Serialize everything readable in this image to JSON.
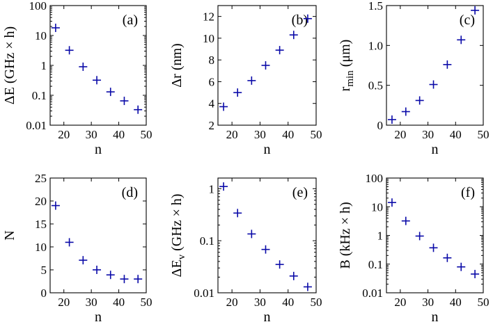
{
  "marker_color": "#0a0aa8",
  "chart_data": [
    {
      "id": "a",
      "type": "scatter",
      "panel_label": "(a)",
      "xlabel": "n",
      "ylabel": "ΔE (GHz × h)",
      "ylabel_sub": "",
      "yscale": "log",
      "xlim": [
        15,
        50
      ],
      "ylim": [
        0.01,
        100
      ],
      "xticks": [
        20,
        30,
        40,
        50
      ],
      "xtick_labels": [
        "20",
        "30",
        "40",
        "50"
      ],
      "yticks": [
        0.01,
        0.1,
        1,
        10,
        100
      ],
      "ytick_labels": [
        "0.01",
        "0.1",
        "1",
        "10",
        "100"
      ],
      "x": [
        17,
        22,
        27,
        32,
        37,
        42,
        47
      ],
      "y": [
        18,
        3.2,
        0.9,
        0.32,
        0.13,
        0.065,
        0.033
      ]
    },
    {
      "id": "b",
      "type": "scatter",
      "panel_label": "(b)",
      "xlabel": "n",
      "ylabel": "Δr (nm)",
      "ylabel_sub": "",
      "yscale": "linear",
      "xlim": [
        15,
        50
      ],
      "ylim": [
        2,
        13
      ],
      "xticks": [
        20,
        30,
        40,
        50
      ],
      "xtick_labels": [
        "20",
        "30",
        "40",
        "50"
      ],
      "yticks": [
        2,
        4,
        6,
        8,
        10,
        12
      ],
      "ytick_labels": [
        "2",
        "4",
        "6",
        "8",
        "10",
        "12"
      ],
      "x": [
        17,
        22,
        27,
        32,
        37,
        42,
        47
      ],
      "y": [
        3.7,
        5.0,
        6.1,
        7.5,
        8.9,
        10.3,
        11.8
      ]
    },
    {
      "id": "c",
      "type": "scatter",
      "panel_label": "(c)",
      "xlabel": "n",
      "ylabel": "r",
      "ylabel_sub": "min",
      "ylabel_suffix": " (μm)",
      "yscale": "linear",
      "xlim": [
        15,
        50
      ],
      "ylim": [
        0,
        1.5
      ],
      "xticks": [
        20,
        30,
        40,
        50
      ],
      "xtick_labels": [
        "20",
        "30",
        "40",
        "50"
      ],
      "yticks": [
        0,
        0.5,
        1.0,
        1.5
      ],
      "ytick_labels": [
        "0",
        "0.5",
        "1.0",
        "1.5"
      ],
      "x": [
        17,
        22,
        27,
        32,
        37,
        42,
        47
      ],
      "y": [
        0.07,
        0.17,
        0.31,
        0.51,
        0.76,
        1.07,
        1.44
      ]
    },
    {
      "id": "d",
      "type": "scatter",
      "panel_label": "(d)",
      "xlabel": "n",
      "ylabel": "N",
      "ylabel_sub": "",
      "yscale": "linear",
      "xlim": [
        15,
        50
      ],
      "ylim": [
        0,
        25
      ],
      "xticks": [
        20,
        30,
        40,
        50
      ],
      "xtick_labels": [
        "20",
        "30",
        "40",
        "50"
      ],
      "yticks": [
        0,
        5,
        10,
        15,
        20,
        25
      ],
      "ytick_labels": [
        "0",
        "5",
        "10",
        "15",
        "20",
        "25"
      ],
      "x": [
        17,
        22,
        27,
        32,
        37,
        42,
        47
      ],
      "y": [
        19,
        11,
        7.1,
        5.0,
        3.9,
        3.0,
        3.0
      ]
    },
    {
      "id": "e",
      "type": "scatter",
      "panel_label": "(e)",
      "xlabel": "n",
      "ylabel": "ΔE",
      "ylabel_sub": "v",
      "ylabel_suffix": " (GHz × h)",
      "yscale": "log",
      "xlim": [
        15,
        50
      ],
      "ylim": [
        0.01,
        1.6
      ],
      "xticks": [
        20,
        30,
        40,
        50
      ],
      "xtick_labels": [
        "20",
        "30",
        "40",
        "50"
      ],
      "yticks": [
        0.01,
        0.1,
        1
      ],
      "ytick_labels": [
        "0.01",
        "0.1",
        "1"
      ],
      "x": [
        17,
        22,
        27,
        32,
        37,
        42,
        47
      ],
      "y": [
        1.1,
        0.34,
        0.135,
        0.068,
        0.035,
        0.021,
        0.013
      ]
    },
    {
      "id": "f",
      "type": "scatter",
      "panel_label": "(f)",
      "xlabel": "n",
      "ylabel": "B (kHz × h)",
      "ylabel_sub": "",
      "yscale": "log",
      "xlim": [
        15,
        50
      ],
      "ylim": [
        0.01,
        100
      ],
      "xticks": [
        20,
        30,
        40,
        50
      ],
      "xtick_labels": [
        "20",
        "30",
        "40",
        "50"
      ],
      "yticks": [
        0.01,
        0.1,
        1,
        10,
        100
      ],
      "ytick_labels": [
        "0.01",
        "0.1",
        "1",
        "10",
        "100"
      ],
      "x": [
        17,
        22,
        27,
        32,
        37,
        42,
        47
      ],
      "y": [
        14,
        3.2,
        0.95,
        0.37,
        0.165,
        0.08,
        0.045
      ]
    }
  ]
}
